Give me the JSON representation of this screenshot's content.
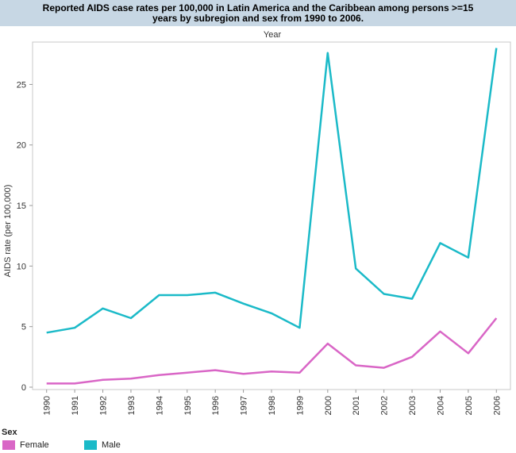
{
  "chart_data": {
    "type": "line",
    "title": "Reported AIDS case rates per 100,000 in Latin America and the Caribbean among persons >=15 years by subregion and sex from 1990 to 2006.",
    "top_axis_label": "Year",
    "ylabel": "AIDS rate (per 100,000)",
    "categories": [
      "1990",
      "1991",
      "1992",
      "1993",
      "1994",
      "1995",
      "1996",
      "1997",
      "1998",
      "1999",
      "2000",
      "2001",
      "2002",
      "2003",
      "2004",
      "2005",
      "2006"
    ],
    "ylim": [
      0,
      28.5
    ],
    "yticks": [
      0,
      5,
      10,
      15,
      20,
      25
    ],
    "series": [
      {
        "name": "Female",
        "color": "#d966c6",
        "values": [
          0.3,
          0.3,
          0.6,
          0.7,
          1.0,
          1.2,
          1.4,
          1.1,
          1.3,
          1.2,
          3.6,
          1.8,
          1.6,
          2.5,
          4.6,
          2.8,
          5.7
        ]
      },
      {
        "name": "Male",
        "color": "#1bbac8",
        "values": [
          4.5,
          4.9,
          6.5,
          5.7,
          7.6,
          7.6,
          7.8,
          6.9,
          6.1,
          4.9,
          27.6,
          9.8,
          7.7,
          7.3,
          11.9,
          10.7,
          28.0
        ]
      }
    ],
    "legend": {
      "title": "Sex",
      "placement": "bottom-left"
    },
    "grid": false
  }
}
